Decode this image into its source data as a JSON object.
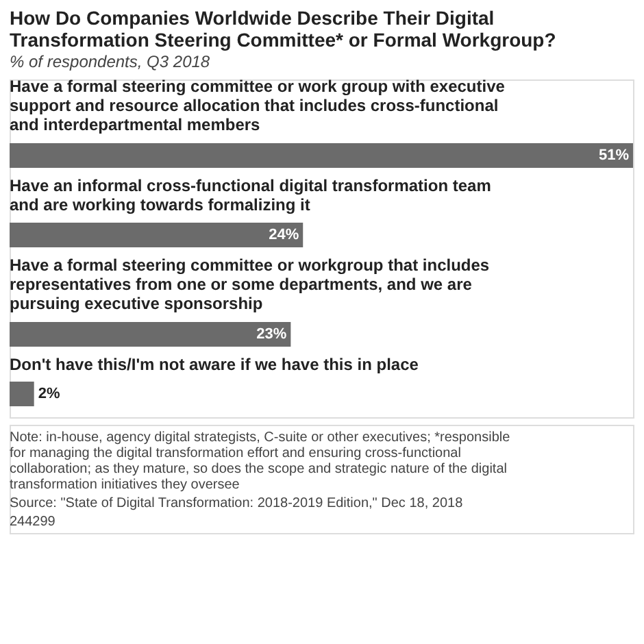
{
  "chart_data": {
    "type": "bar",
    "orientation": "horizontal",
    "title": "How Do Companies Worldwide Describe Their Digital Transformation Steering Committee* or Formal Workgroup?",
    "subtitle": "% of respondents, Q3 2018",
    "categories": [
      "Have a formal steering committee or work group with executive support and resource allocation that includes cross-functional and interdepartmental members",
      "Have an informal cross-functional digital transformation team and are working towards formalizing it",
      "Have a formal steering committee or workgroup that includes representatives from one or some departments, and we are pursuing executive sponsorship",
      "Don't have this/I'm not aware if we have this in place"
    ],
    "values": [
      51,
      24,
      23,
      2
    ],
    "value_labels": [
      "51%",
      "24%",
      "23%",
      "2%"
    ],
    "color": "#6b6b6b",
    "annotations": [
      "Note: in-house, agency digital strategists, C-suite or other executives; *responsible for managing the digital transformation effort and ensuring cross-functional collaboration; as they mature, so does the scope and strategic nature of the digital transformation initiatives they oversee",
      "Source: \"State of Digital Transformation: 2018-2019 Edition,\" Dec 18, 2018",
      "244299"
    ]
  }
}
